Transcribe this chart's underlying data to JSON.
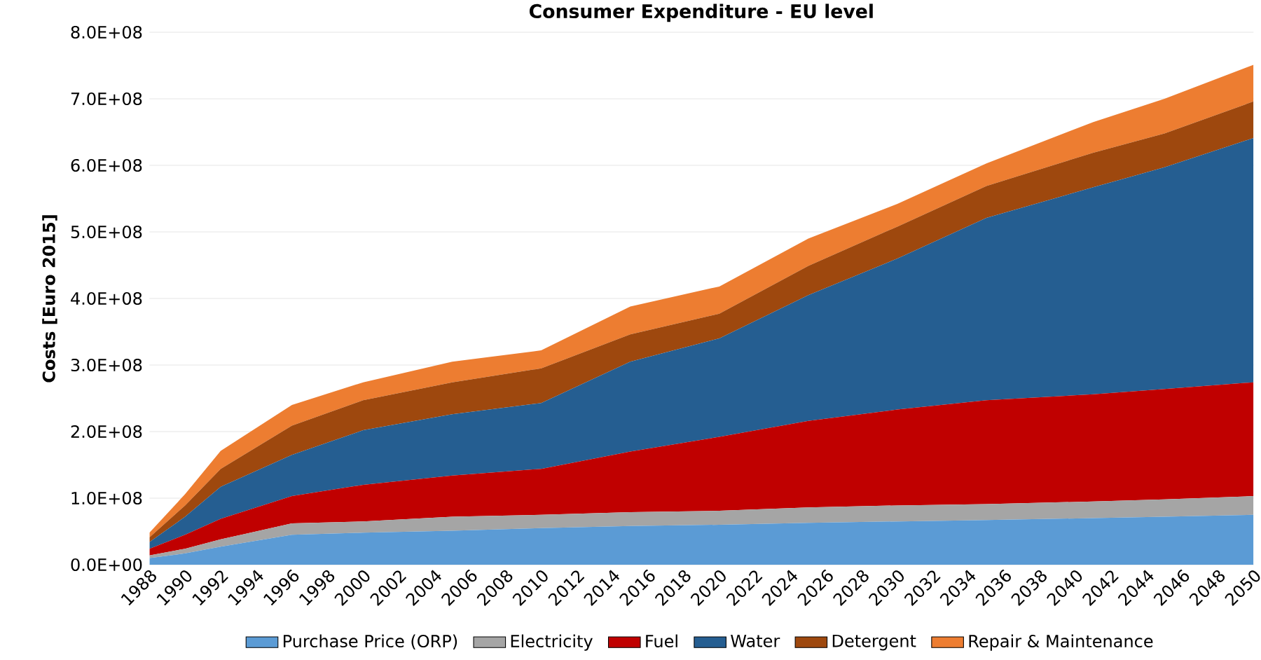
{
  "chart_data": {
    "type": "area",
    "stacked": true,
    "title": "Consumer Expenditure - EU level",
    "ylabel": "Costs [Euro 2015]",
    "x": [
      1988,
      1990,
      1992,
      1996,
      2000,
      2005,
      2010,
      2015,
      2020,
      2025,
      2030,
      2035,
      2041,
      2045,
      2050
    ],
    "xlim": [
      1988,
      2050
    ],
    "xticks": [
      1988,
      1990,
      1992,
      1994,
      1996,
      1998,
      2000,
      2002,
      2004,
      2006,
      2008,
      2010,
      2012,
      2014,
      2016,
      2018,
      2020,
      2022,
      2024,
      2026,
      2028,
      2030,
      2032,
      2034,
      2036,
      2038,
      2040,
      2042,
      2044,
      2046,
      2048,
      2050
    ],
    "ylim": [
      0,
      800000000
    ],
    "yticks": [
      {
        "value": 0,
        "label": "0.0E+00"
      },
      {
        "value": 100000000,
        "label": "1.0E+08"
      },
      {
        "value": 200000000,
        "label": "2.0E+08"
      },
      {
        "value": 300000000,
        "label": "3.0E+08"
      },
      {
        "value": 400000000,
        "label": "4.0E+08"
      },
      {
        "value": 500000000,
        "label": "5.0E+08"
      },
      {
        "value": 600000000,
        "label": "6.0E+08"
      },
      {
        "value": 700000000,
        "label": "7.0E+08"
      },
      {
        "value": 800000000,
        "label": "8.0E+08"
      }
    ],
    "grid": "y",
    "legend": "bottom",
    "series": [
      {
        "name": "Purchase Price (ORP)",
        "color": "#5b9bd5",
        "values": [
          10000000,
          17000000,
          27000000,
          45000000,
          48000000,
          51000000,
          55000000,
          58000000,
          60000000,
          63000000,
          65000000,
          67000000,
          70000000,
          72000000,
          75000000
        ]
      },
      {
        "name": "Electricity",
        "color": "#a5a5a5",
        "values": [
          4000000,
          7000000,
          11000000,
          17000000,
          17000000,
          21000000,
          20000000,
          21000000,
          21000000,
          23000000,
          24000000,
          24000000,
          25000000,
          26000000,
          28000000
        ]
      },
      {
        "name": "Fuel",
        "color": "#c00000",
        "values": [
          10000000,
          21000000,
          31000000,
          41000000,
          55000000,
          62000000,
          69000000,
          91000000,
          111000000,
          130000000,
          144000000,
          156000000,
          161000000,
          166000000,
          171000000
        ]
      },
      {
        "name": "Water",
        "color": "#255e91",
        "values": [
          10000000,
          27000000,
          48000000,
          62000000,
          82000000,
          92000000,
          99000000,
          135000000,
          148000000,
          189000000,
          227000000,
          274000000,
          311000000,
          333000000,
          367000000
        ]
      },
      {
        "name": "Detergent",
        "color": "#9e480e",
        "values": [
          7000000,
          17000000,
          27000000,
          44000000,
          45000000,
          48000000,
          52000000,
          41000000,
          37000000,
          44000000,
          48000000,
          48000000,
          52000000,
          51000000,
          55000000
        ]
      },
      {
        "name": "Repair & Maintenance",
        "color": "#ed7d31",
        "values": [
          7000000,
          17000000,
          27000000,
          31000000,
          27000000,
          31000000,
          27000000,
          42000000,
          41000000,
          41000000,
          34000000,
          34000000,
          46000000,
          52000000,
          55000000
        ]
      }
    ]
  }
}
